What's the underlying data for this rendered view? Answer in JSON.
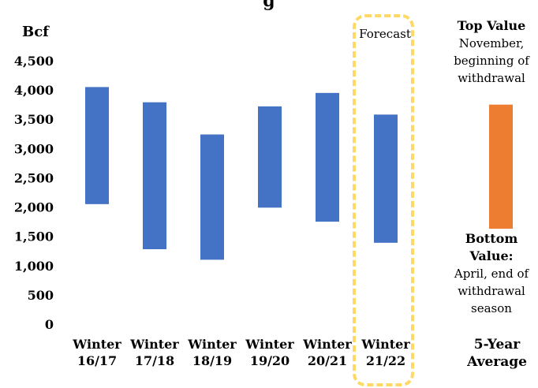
{
  "title_fragment": "g",
  "chart_data": {
    "type": "bar",
    "subtype": "floating-range",
    "ylabel": "Bcf",
    "ylim": [
      0,
      4500
    ],
    "yticks": [
      "0",
      "500",
      "1,000",
      "1,500",
      "2,000",
      "2,500",
      "3,000",
      "3,500",
      "4,000",
      "4,500"
    ],
    "ytick_values": [
      0,
      500,
      1000,
      1500,
      2000,
      2500,
      3000,
      3500,
      4000,
      4500
    ],
    "categories": [
      {
        "line1": "Winter",
        "line2": "16/17"
      },
      {
        "line1": "Winter",
        "line2": "17/18"
      },
      {
        "line1": "Winter",
        "line2": "18/19"
      },
      {
        "line1": "Winter",
        "line2": "19/20"
      },
      {
        "line1": "Winter",
        "line2": "20/21"
      },
      {
        "line1": "Winter",
        "line2": "21/22"
      }
    ],
    "series": [
      {
        "top": 4050,
        "bottom": 2050
      },
      {
        "top": 3790,
        "bottom": 1280
      },
      {
        "top": 3240,
        "bottom": 1100
      },
      {
        "top": 3720,
        "bottom": 1990
      },
      {
        "top": 3950,
        "bottom": 1750
      },
      {
        "top": 3580,
        "bottom": 1390
      }
    ],
    "average": {
      "label_line1": "5-Year",
      "label_line2": "Average",
      "top": 3750,
      "bottom": 1630
    },
    "colors": {
      "bars": "#4472C4",
      "average": "#ED7D31",
      "forecast_box": "#FFD966"
    },
    "forecast_label": "Forecast",
    "annotations": {
      "top_heading": "Top Value",
      "top_text": [
        "November,",
        "beginning of",
        "withdrawal"
      ],
      "bottom_heading": [
        "Bottom",
        "Value:"
      ],
      "bottom_text": [
        "April, end of",
        "withdrawal",
        "season"
      ]
    }
  }
}
